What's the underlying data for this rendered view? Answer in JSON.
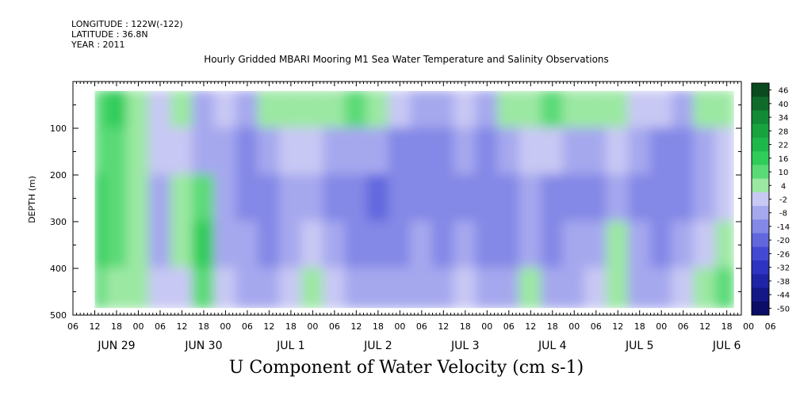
{
  "header": {
    "longitude": "LONGITUDE : 122W(-122)",
    "latitude": "LATITUDE : 36.8N",
    "year": "YEAR : 2011",
    "title": "Hourly Gridded MBARI Mooring M1 Sea Water Temperature and Salinity Observations"
  },
  "variable_label": "U Component of Water Velocity (cm s-1)",
  "chart_data": {
    "type": "heatmap",
    "title": "Hourly Gridded MBARI Mooring M1 Sea Water Temperature and Salinity Observations",
    "variable": "U Component of Water Velocity (cm s-1)",
    "xlabel": "",
    "ylabel": "DEPTH (m)",
    "ylim": [
      500,
      0
    ],
    "depth_ticks": [
      100,
      200,
      300,
      400,
      500
    ],
    "depth_data_range": [
      20,
      485
    ],
    "time_range_hours": [
      0,
      184
    ],
    "data_start_hour": 6,
    "data_end_hour": 182,
    "hour_tick_labels": [
      "06",
      "12",
      "18",
      "00",
      "06",
      "12",
      "18",
      "00",
      "06",
      "12",
      "18",
      "00",
      "06",
      "12",
      "18",
      "00",
      "06",
      "12",
      "18",
      "00",
      "06",
      "12",
      "18",
      "00",
      "06",
      "12",
      "18",
      "00",
      "06",
      "12",
      "18",
      "00",
      "06"
    ],
    "day_labels": [
      {
        "label": "JUN 29",
        "hour": 12
      },
      {
        "label": "JUN 30",
        "hour": 36
      },
      {
        "label": "JUL  1",
        "hour": 60
      },
      {
        "label": "JUL  2",
        "hour": 84
      },
      {
        "label": "JUL  3",
        "hour": 108
      },
      {
        "label": "JUL  4",
        "hour": 132
      },
      {
        "label": "JUL  5",
        "hour": 156
      },
      {
        "label": "JUL  6",
        "hour": 180
      }
    ],
    "colorbar": {
      "labels": [
        "46",
        "40",
        "34",
        "28",
        "22",
        "16",
        "10",
        "4",
        "-2",
        "-8",
        "-14",
        "-20",
        "-26",
        "-32",
        "-38",
        "-44",
        "-50"
      ],
      "colors": [
        "#0b4a1e",
        "#0f6b2a",
        "#138a35",
        "#18a33f",
        "#1eb84a",
        "#2fcc5a",
        "#5ada77",
        "#9be8a3",
        "#c8c8f4",
        "#a6a8ee",
        "#8488e6",
        "#6267de",
        "#4449d4",
        "#2e33c2",
        "#1f24a6",
        "#141887",
        "#0b0d66"
      ]
    },
    "cells_estimated": {
      "col_hours": [
        6,
        12,
        18,
        24,
        30,
        36,
        42,
        48,
        54,
        60,
        66,
        72,
        78,
        84,
        90,
        96,
        102,
        108,
        114,
        120,
        126,
        132,
        138,
        144,
        150,
        156,
        162,
        168,
        174,
        180
      ],
      "row_depths": [
        50,
        150,
        250,
        350,
        450
      ],
      "values": [
        [
          14,
          16,
          6,
          2,
          4,
          -4,
          0,
          -6,
          4,
          8,
          6,
          4,
          10,
          6,
          -2,
          -8,
          -4,
          2,
          -6,
          6,
          8,
          10,
          4,
          6,
          6,
          -2,
          0,
          -6,
          4,
          8
        ],
        [
          12,
          14,
          4,
          -2,
          0,
          -6,
          -8,
          -10,
          -6,
          0,
          -2,
          -6,
          -4,
          -8,
          -10,
          -12,
          -10,
          -6,
          -12,
          -4,
          0,
          -2,
          -4,
          -6,
          -2,
          -8,
          -10,
          -12,
          -6,
          0
        ],
        [
          16,
          12,
          6,
          -4,
          6,
          14,
          -6,
          -10,
          -12,
          -8,
          -4,
          -10,
          -12,
          -16,
          -14,
          -12,
          -14,
          -10,
          -14,
          -10,
          -6,
          -12,
          -14,
          -10,
          -8,
          -12,
          -14,
          -10,
          -6,
          2
        ],
        [
          18,
          10,
          4,
          -6,
          8,
          16,
          -4,
          -8,
          -10,
          -6,
          -2,
          -6,
          -10,
          -14,
          -12,
          -8,
          -10,
          -4,
          -10,
          -12,
          -8,
          -10,
          -8,
          -4,
          6,
          -6,
          -10,
          -6,
          -2,
          6
        ],
        [
          12,
          8,
          6,
          -2,
          2,
          10,
          0,
          -4,
          -6,
          -2,
          6,
          -2,
          -4,
          -8,
          -6,
          -4,
          -4,
          2,
          -6,
          -8,
          4,
          -6,
          -4,
          -2,
          8,
          -4,
          -6,
          -2,
          4,
          12
        ]
      ]
    },
    "grid": false,
    "legend": "colorbar at right"
  }
}
